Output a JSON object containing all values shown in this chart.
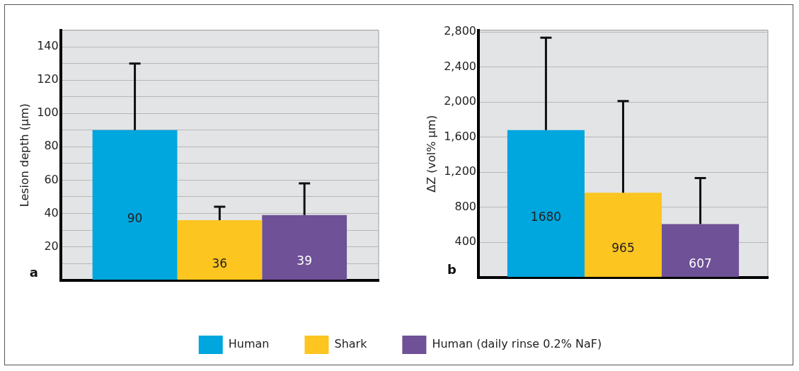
{
  "chart_data": [
    {
      "type": "bar",
      "ylabel": "Lesion depth (µm)",
      "categories": [
        null
      ],
      "ylim": [
        0,
        150
      ],
      "yticks": [
        {
          "value": 0,
          "label": null
        },
        {
          "value": 10,
          "label": null
        },
        20,
        {
          "value": 30,
          "label": null
        },
        40,
        {
          "value": 50,
          "label": null
        },
        60,
        {
          "value": 70,
          "label": null
        },
        80,
        {
          "value": 90,
          "label": null
        },
        100,
        {
          "value": 110,
          "label": null
        },
        120,
        {
          "value": 130,
          "label": null
        },
        140
      ],
      "grid": "y",
      "legend": "bottom",
      "data_labels": true,
      "annotations": [
        "a"
      ],
      "series": [
        {
          "name": "Human",
          "color": "#00a6de",
          "values": [
            90
          ],
          "errors": [
            [
              90,
              130
            ]
          ]
        },
        {
          "name": "Shark",
          "color": "#fcc520",
          "values": [
            36
          ],
          "errors": [
            [
              36,
              44
            ]
          ]
        },
        {
          "name": "Human (daily rinse 0.2% NaF)",
          "color": "#6e5196",
          "values": [
            39
          ],
          "errors": [
            [
              39,
              58
            ]
          ]
        }
      ]
    },
    {
      "type": "bar",
      "ylabel": "ΔZ (vol% µm)",
      "categories": [
        null
      ],
      "ylim": [
        0,
        2820
      ],
      "yticks": [
        {
          "value": 0,
          "label": null
        },
        {
          "value": 400,
          "label": "400"
        },
        {
          "value": 800,
          "label": "800"
        },
        {
          "value": 1200,
          "label": "1,200"
        },
        {
          "value": 1600,
          "label": "1,600"
        },
        {
          "value": 2000,
          "label": "2,000"
        },
        {
          "value": 2400,
          "label": "2,400"
        },
        {
          "value": 2800,
          "label": "2,800"
        }
      ],
      "grid": "y",
      "data_labels": true,
      "annotations": [
        "b"
      ],
      "series": [
        {
          "color": "#00a6de",
          "values": [
            1680
          ],
          "errors": [
            [
              1680,
              2734
            ]
          ]
        },
        {
          "color": "#fcc520",
          "values": [
            965
          ],
          "errors": [
            [
              965,
              2011
            ]
          ]
        },
        {
          "color": "#6e5196",
          "values": [
            607
          ],
          "errors": [
            [
              607,
              1133
            ]
          ]
        }
      ]
    }
  ]
}
